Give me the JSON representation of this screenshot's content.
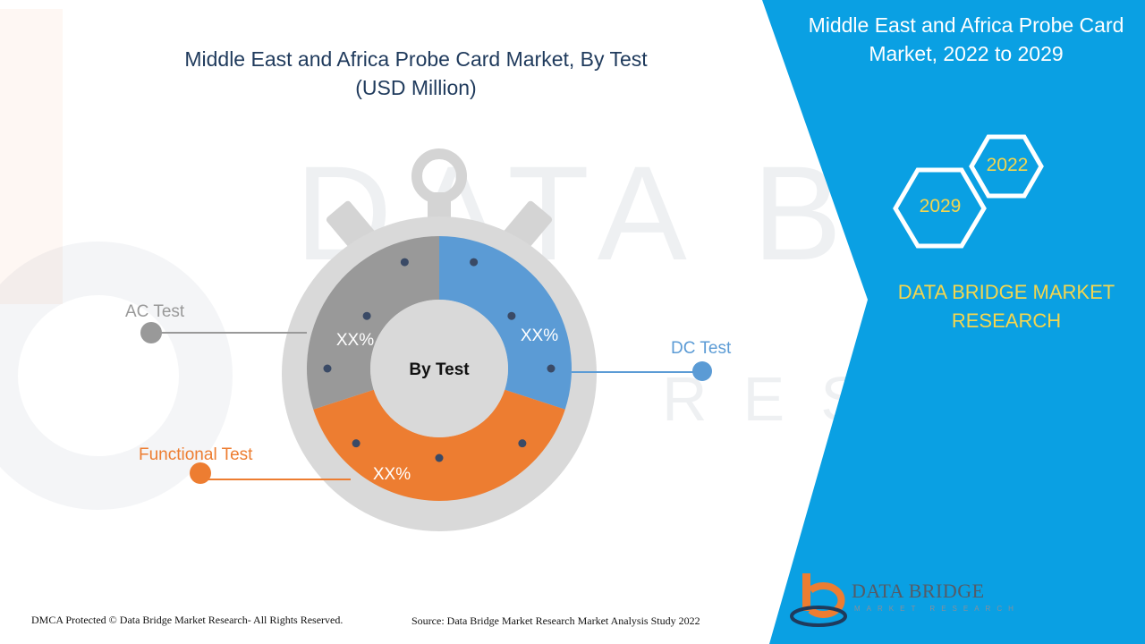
{
  "chart": {
    "title_line1": "Middle East and Africa Probe Card Market, By Test",
    "title_line2": "(USD Million)",
    "center_label": "By Test"
  },
  "chart_data": {
    "type": "pie",
    "title": "Middle East and Africa Probe Card Market, By Test (USD Million)",
    "segments": [
      {
        "name": "DC Test",
        "label": "XX%",
        "share": 0.3,
        "color": "#5b9bd5"
      },
      {
        "name": "Functional Test",
        "label": "XX%",
        "share": 0.4,
        "color": "#ed7d31"
      },
      {
        "name": "AC Test",
        "label": "XX%",
        "share": 0.3,
        "color": "#999999"
      }
    ]
  },
  "sidebar": {
    "title_line1": "Middle East and Africa Probe Card",
    "title_line2": "Market, 2022 to 2029",
    "year_start": "2022",
    "year_end": "2029",
    "brand_line1": "DATA BRIDGE MARKET",
    "brand_line2": "RESEARCH",
    "background_color": "#0aa0e3"
  },
  "footer": {
    "copyright": "DMCA Protected © Data Bridge Market Research- All Rights Reserved.",
    "source": "Source: Data Bridge Market Research Market Analysis Study 2022"
  },
  "logo": {
    "name": "DATA BRIDGE",
    "tagline": "MARKET RESEARCH"
  },
  "watermark": {
    "text": "DATA BRIDGE",
    "subtext": "RESEARCH"
  }
}
